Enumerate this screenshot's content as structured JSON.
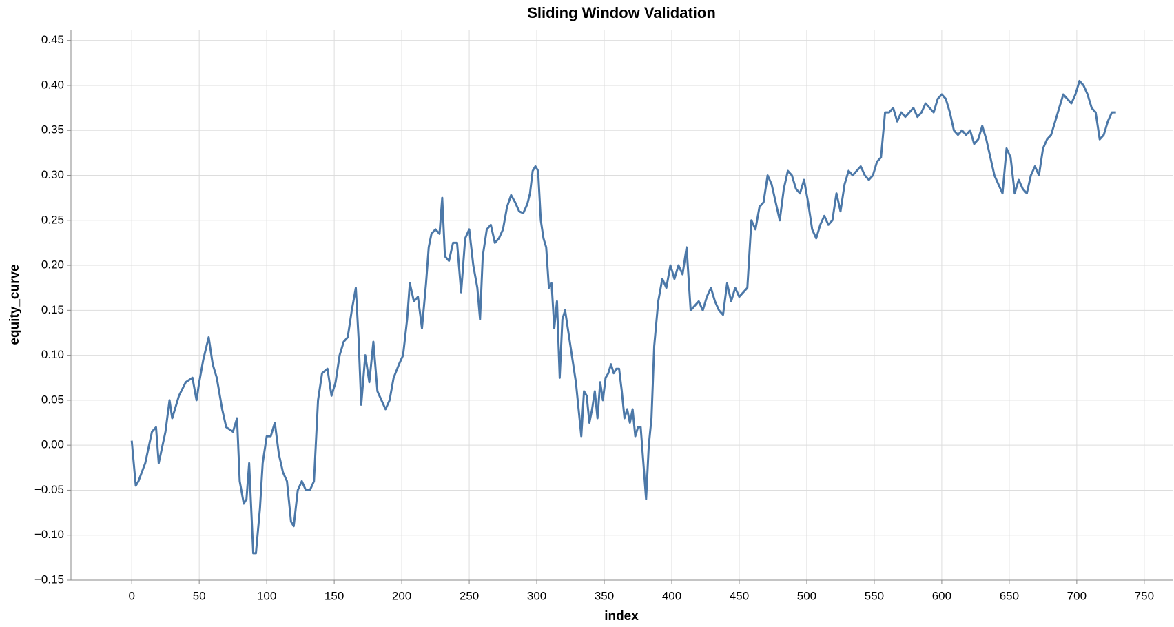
{
  "chart_data": {
    "type": "line",
    "title": "Sliding Window Validation",
    "x_label": "index",
    "y_label": "equity_curve",
    "x": [
      0,
      3,
      5,
      10,
      15,
      18,
      20,
      25,
      28,
      30,
      35,
      40,
      45,
      48,
      50,
      53,
      57,
      60,
      63,
      67,
      70,
      75,
      78,
      80,
      83,
      85,
      87,
      90,
      92,
      95,
      97,
      100,
      103,
      106,
      109,
      112,
      115,
      118,
      120,
      123,
      126,
      129,
      132,
      135,
      138,
      141,
      145,
      148,
      151,
      154,
      157,
      160,
      163,
      166,
      168,
      170,
      173,
      176,
      179,
      182,
      185,
      188,
      191,
      194,
      198,
      201,
      204,
      206,
      209,
      212,
      215,
      218,
      220,
      222,
      225,
      228,
      230,
      232,
      235,
      238,
      241,
      244,
      247,
      250,
      253,
      256,
      258,
      260,
      263,
      266,
      269,
      272,
      275,
      278,
      281,
      284,
      287,
      290,
      293,
      295,
      297,
      299,
      301,
      303,
      305,
      307,
      309,
      311,
      313,
      315,
      317,
      319,
      321,
      323,
      325,
      327,
      329,
      331,
      333,
      335,
      337,
      339,
      341,
      343,
      345,
      347,
      349,
      351,
      353,
      355,
      357,
      359,
      361,
      363,
      365,
      367,
      369,
      371,
      373,
      375,
      377,
      379,
      381,
      383,
      385,
      387,
      390,
      393,
      396,
      399,
      402,
      405,
      408,
      411,
      414,
      417,
      420,
      423,
      426,
      429,
      432,
      435,
      438,
      441,
      444,
      447,
      450,
      453,
      456,
      459,
      462,
      465,
      468,
      471,
      474,
      477,
      480,
      483,
      486,
      489,
      492,
      495,
      498,
      501,
      504,
      507,
      510,
      513,
      516,
      519,
      522,
      525,
      528,
      531,
      534,
      537,
      540,
      543,
      546,
      549,
      552,
      555,
      558,
      561,
      564,
      567,
      570,
      573,
      576,
      579,
      582,
      585,
      588,
      591,
      594,
      597,
      600,
      603,
      606,
      609,
      612,
      615,
      618,
      621,
      624,
      627,
      630,
      633,
      636,
      639,
      642,
      645,
      648,
      651,
      654,
      657,
      660,
      663,
      666,
      669,
      672,
      675,
      678,
      681,
      684,
      687,
      690,
      693,
      696,
      699,
      702,
      705,
      708,
      711,
      714,
      717,
      720,
      723,
      726,
      729
    ],
    "series": [
      {
        "name": "equity_curve",
        "color": "#4c78a8",
        "values": [
          0.005,
          -0.045,
          -0.04,
          -0.02,
          0.015,
          0.02,
          -0.02,
          0.015,
          0.05,
          0.03,
          0.055,
          0.07,
          0.075,
          0.05,
          0.07,
          0.095,
          0.12,
          0.09,
          0.075,
          0.04,
          0.02,
          0.015,
          0.03,
          -0.04,
          -0.065,
          -0.06,
          -0.02,
          -0.12,
          -0.12,
          -0.07,
          -0.02,
          0.01,
          0.01,
          0.025,
          -0.01,
          -0.03,
          -0.04,
          -0.085,
          -0.09,
          -0.05,
          -0.04,
          -0.05,
          -0.05,
          -0.04,
          0.05,
          0.08,
          0.085,
          0.055,
          0.07,
          0.1,
          0.115,
          0.12,
          0.15,
          0.175,
          0.12,
          0.045,
          0.1,
          0.07,
          0.115,
          0.06,
          0.05,
          0.04,
          0.05,
          0.075,
          0.09,
          0.1,
          0.14,
          0.18,
          0.16,
          0.165,
          0.13,
          0.18,
          0.22,
          0.235,
          0.24,
          0.235,
          0.275,
          0.21,
          0.205,
          0.225,
          0.225,
          0.17,
          0.23,
          0.24,
          0.2,
          0.175,
          0.14,
          0.21,
          0.24,
          0.245,
          0.225,
          0.23,
          0.24,
          0.265,
          0.278,
          0.27,
          0.26,
          0.258,
          0.268,
          0.28,
          0.305,
          0.31,
          0.305,
          0.25,
          0.23,
          0.22,
          0.175,
          0.18,
          0.13,
          0.16,
          0.075,
          0.14,
          0.15,
          0.13,
          0.11,
          0.09,
          0.07,
          0.04,
          0.01,
          0.06,
          0.055,
          0.025,
          0.04,
          0.06,
          0.03,
          0.07,
          0.05,
          0.075,
          0.08,
          0.09,
          0.08,
          0.085,
          0.085,
          0.06,
          0.03,
          0.04,
          0.025,
          0.04,
          0.01,
          0.02,
          0.02,
          -0.02,
          -0.06,
          0.0,
          0.03,
          0.11,
          0.16,
          0.185,
          0.175,
          0.2,
          0.185,
          0.2,
          0.19,
          0.22,
          0.15,
          0.155,
          0.16,
          0.15,
          0.165,
          0.175,
          0.16,
          0.15,
          0.145,
          0.18,
          0.16,
          0.175,
          0.165,
          0.17,
          0.175,
          0.25,
          0.24,
          0.265,
          0.27,
          0.3,
          0.29,
          0.27,
          0.25,
          0.285,
          0.305,
          0.3,
          0.285,
          0.28,
          0.295,
          0.27,
          0.24,
          0.23,
          0.245,
          0.255,
          0.245,
          0.25,
          0.28,
          0.26,
          0.29,
          0.305,
          0.3,
          0.305,
          0.31,
          0.3,
          0.295,
          0.3,
          0.315,
          0.32,
          0.37,
          0.37,
          0.375,
          0.36,
          0.37,
          0.365,
          0.37,
          0.375,
          0.365,
          0.37,
          0.38,
          0.375,
          0.37,
          0.385,
          0.39,
          0.385,
          0.37,
          0.35,
          0.345,
          0.35,
          0.345,
          0.35,
          0.335,
          0.34,
          0.355,
          0.34,
          0.32,
          0.3,
          0.29,
          0.28,
          0.33,
          0.32,
          0.28,
          0.295,
          0.285,
          0.28,
          0.3,
          0.31,
          0.3,
          0.33,
          0.34,
          0.345,
          0.36,
          0.375,
          0.39,
          0.385,
          0.38,
          0.39,
          0.405,
          0.4,
          0.39,
          0.375,
          0.37,
          0.34,
          0.345,
          0.36,
          0.37,
          0.37
        ]
      }
    ],
    "xlim": [
      -45,
      771
    ],
    "ylim": [
      -0.15,
      0.462
    ],
    "xticks": [
      0,
      50,
      100,
      150,
      200,
      250,
      300,
      350,
      400,
      450,
      500,
      550,
      600,
      650,
      700,
      750
    ],
    "yticks": [
      {
        "value": -0.15,
        "label": "−0.15"
      },
      {
        "value": -0.1,
        "label": "−0.10"
      },
      {
        "value": -0.05,
        "label": "−0.05"
      },
      {
        "value": 0,
        "label": "0.00"
      },
      {
        "value": 0.05,
        "label": "0.05"
      },
      {
        "value": 0.1,
        "label": "0.10"
      },
      {
        "value": 0.15,
        "label": "0.15"
      },
      {
        "value": 0.2,
        "label": "0.20"
      },
      {
        "value": 0.25,
        "label": "0.25"
      },
      {
        "value": 0.3,
        "label": "0.30"
      },
      {
        "value": 0.35,
        "label": "0.35"
      },
      {
        "value": 0.4,
        "label": "0.40"
      },
      {
        "value": 0.45,
        "label": "0.45"
      }
    ],
    "grid": true
  }
}
